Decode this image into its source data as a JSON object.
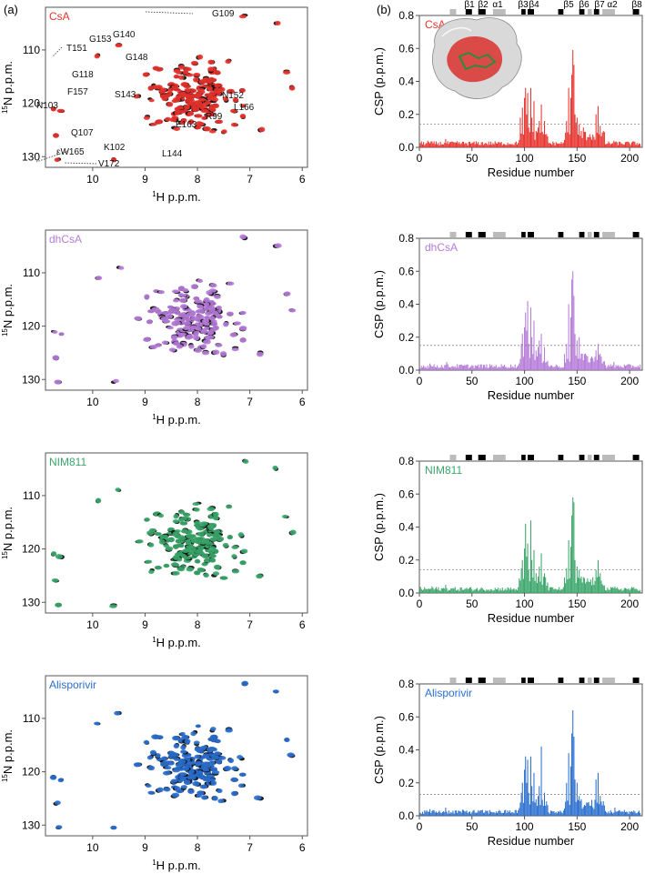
{
  "panel_labels": [
    "(a)",
    "(b)"
  ],
  "hsqc_axes": {
    "xlabel": "1H p.p.m.",
    "xlabel_sup": "1",
    "xlabel_main": "H p.p.m.",
    "ylabel_sup": "15",
    "ylabel_main": "N p.p.m.",
    "xticks": [
      "10",
      "9",
      "8",
      "7",
      "6"
    ],
    "yticks": [
      "110",
      "120",
      "130"
    ]
  },
  "csp_axes": {
    "xlabel": "Residue number",
    "ylabel": "CSP (p.p.m.)",
    "xticks": [
      "0",
      "50",
      "100",
      "150",
      "200"
    ],
    "yticks": [
      "0.0",
      "0.2",
      "0.4",
      "0.6",
      "0.8"
    ]
  },
  "secondary_structure": {
    "labels": [
      "β1",
      "β2",
      "α1",
      "β3",
      "β4",
      "β5",
      "β6",
      "β7",
      "α2",
      "β8"
    ],
    "elements": [
      {
        "type": "grey",
        "start": 29,
        "end": 35
      },
      {
        "type": "black",
        "start": 44,
        "end": 50
      },
      {
        "type": "black",
        "start": 56,
        "end": 63
      },
      {
        "type": "grey",
        "start": 70,
        "end": 82
      },
      {
        "type": "black",
        "start": 97,
        "end": 101
      },
      {
        "type": "black",
        "start": 103,
        "end": 109
      },
      {
        "type": "black",
        "start": 132,
        "end": 137
      },
      {
        "type": "black",
        "start": 152,
        "end": 157
      },
      {
        "type": "grey",
        "start": 160,
        "end": 164
      },
      {
        "type": "black",
        "start": 166,
        "end": 171
      },
      {
        "type": "grey",
        "start": 174,
        "end": 186
      },
      {
        "type": "black",
        "start": 203,
        "end": 209
      }
    ]
  },
  "hsqc_labels": [
    "G109",
    "T151",
    "G153",
    "G140",
    "G148",
    "G118",
    "F157",
    "S143",
    "N152",
    "N103",
    "L166",
    "R99",
    "Q107",
    "E163",
    "K102",
    "εW165",
    "L144",
    "V172"
  ],
  "chart_data": [
    {
      "type": "scatter",
      "name": "CsA HSQC",
      "label": "CsA",
      "color": "#e8322c",
      "xlabel": "1H p.p.m.",
      "ylabel": "15N p.p.m.",
      "xlim": [
        10.9,
        5.9
      ],
      "ylim": [
        102,
        132
      ],
      "xticks": [
        10,
        9,
        8,
        7,
        6
      ],
      "yticks": [
        110,
        120,
        130
      ]
    },
    {
      "type": "bar",
      "name": "CsA CSP",
      "label": "CsA",
      "color": "#e8322c",
      "xlabel": "Residue number",
      "ylabel": "CSP (p.p.m.)",
      "xlim": [
        0,
        212
      ],
      "ylim": [
        0,
        0.8
      ],
      "threshold": 0.14,
      "peaks": [
        [
          96,
          0.18
        ],
        [
          98,
          0.24
        ],
        [
          100,
          0.3
        ],
        [
          101,
          0.36
        ],
        [
          102,
          0.2
        ],
        [
          103,
          0.33
        ],
        [
          104,
          0.12
        ],
        [
          106,
          0.36
        ],
        [
          107,
          0.18
        ],
        [
          109,
          0.28
        ],
        [
          111,
          0.1
        ],
        [
          113,
          0.12
        ],
        [
          114,
          0.16
        ],
        [
          116,
          0.26
        ],
        [
          118,
          0.08
        ],
        [
          119,
          0.16
        ],
        [
          121,
          0.08
        ],
        [
          140,
          0.16
        ],
        [
          142,
          0.36
        ],
        [
          144,
          0.3
        ],
        [
          145,
          0.44
        ],
        [
          146,
          0.59
        ],
        [
          147,
          0.5
        ],
        [
          148,
          0.2
        ],
        [
          149,
          0.15
        ],
        [
          150,
          0.18
        ],
        [
          152,
          0.14
        ],
        [
          154,
          0.1
        ],
        [
          156,
          0.12
        ],
        [
          162,
          0.08
        ],
        [
          168,
          0.2
        ],
        [
          170,
          0.25
        ],
        [
          172,
          0.13
        ],
        [
          174,
          0.09
        ],
        [
          25,
          0.05
        ],
        [
          8,
          0.04
        ],
        [
          33,
          0.03
        ],
        [
          185,
          0.04
        ]
      ]
    },
    {
      "type": "scatter",
      "name": "dhCsA HSQC",
      "label": "dhCsA",
      "color": "#b57bd8",
      "xlabel": "1H p.p.m.",
      "ylabel": "15N p.p.m.",
      "xlim": [
        10.9,
        5.9
      ],
      "ylim": [
        102,
        132
      ],
      "xticks": [
        10,
        9,
        8,
        7,
        6
      ],
      "yticks": [
        110,
        120,
        130
      ]
    },
    {
      "type": "bar",
      "name": "dhCsA CSP",
      "label": "dhCsA",
      "color": "#b57bd8",
      "xlabel": "Residue number",
      "ylabel": "CSP (p.p.m.)",
      "xlim": [
        0,
        212
      ],
      "ylim": [
        0,
        0.8
      ],
      "threshold": 0.15,
      "peaks": [
        [
          97,
          0.16
        ],
        [
          98,
          0.22
        ],
        [
          100,
          0.26
        ],
        [
          101,
          0.35
        ],
        [
          102,
          0.24
        ],
        [
          103,
          0.42
        ],
        [
          104,
          0.16
        ],
        [
          106,
          0.38
        ],
        [
          107,
          0.2
        ],
        [
          109,
          0.3
        ],
        [
          111,
          0.12
        ],
        [
          113,
          0.14
        ],
        [
          114,
          0.18
        ],
        [
          116,
          0.22
        ],
        [
          119,
          0.14
        ],
        [
          140,
          0.16
        ],
        [
          142,
          0.4
        ],
        [
          144,
          0.32
        ],
        [
          145,
          0.55
        ],
        [
          146,
          0.6
        ],
        [
          147,
          0.45
        ],
        [
          148,
          0.22
        ],
        [
          150,
          0.18
        ],
        [
          152,
          0.2
        ],
        [
          154,
          0.1
        ],
        [
          158,
          0.1
        ],
        [
          168,
          0.12
        ],
        [
          170,
          0.16
        ],
        [
          172,
          0.1
        ],
        [
          26,
          0.05
        ],
        [
          10,
          0.04
        ],
        [
          185,
          0.05
        ]
      ]
    },
    {
      "type": "scatter",
      "name": "NIM811 HSQC",
      "label": "NIM811",
      "color": "#3aa66a",
      "xlabel": "1H p.p.m.",
      "ylabel": "15N p.p.m.",
      "xlim": [
        10.9,
        5.9
      ],
      "ylim": [
        102,
        132
      ],
      "xticks": [
        10,
        9,
        8,
        7,
        6
      ],
      "yticks": [
        110,
        120,
        130
      ]
    },
    {
      "type": "bar",
      "name": "NIM811 CSP",
      "label": "NIM811",
      "color": "#3aa66a",
      "xlabel": "Residue number",
      "ylabel": "CSP (p.p.m.)",
      "xlim": [
        0,
        212
      ],
      "ylim": [
        0,
        0.8
      ],
      "threshold": 0.14,
      "peaks": [
        [
          97,
          0.15
        ],
        [
          98,
          0.2
        ],
        [
          100,
          0.27
        ],
        [
          101,
          0.42
        ],
        [
          102,
          0.22
        ],
        [
          103,
          0.3
        ],
        [
          104,
          0.14
        ],
        [
          106,
          0.44
        ],
        [
          107,
          0.2
        ],
        [
          109,
          0.26
        ],
        [
          111,
          0.12
        ],
        [
          113,
          0.1
        ],
        [
          114,
          0.16
        ],
        [
          116,
          0.24
        ],
        [
          119,
          0.12
        ],
        [
          140,
          0.15
        ],
        [
          142,
          0.32
        ],
        [
          144,
          0.28
        ],
        [
          145,
          0.47
        ],
        [
          146,
          0.58
        ],
        [
          147,
          0.55
        ],
        [
          148,
          0.2
        ],
        [
          150,
          0.16
        ],
        [
          152,
          0.14
        ],
        [
          154,
          0.1
        ],
        [
          168,
          0.14
        ],
        [
          170,
          0.2
        ],
        [
          172,
          0.12
        ],
        [
          25,
          0.05
        ],
        [
          12,
          0.04
        ],
        [
          186,
          0.04
        ]
      ]
    },
    {
      "type": "scatter",
      "name": "Alisporivir HSQC",
      "label": "Alisporivir",
      "color": "#2a6fcf",
      "xlabel": "1H p.p.m.",
      "ylabel": "15N p.p.m.",
      "xlim": [
        10.9,
        5.9
      ],
      "ylim": [
        102,
        132
      ],
      "xticks": [
        10,
        9,
        8,
        7,
        6
      ],
      "yticks": [
        110,
        120,
        130
      ]
    },
    {
      "type": "bar",
      "name": "Alisporivir CSP",
      "label": "Alisporivir",
      "color": "#2a6fcf",
      "xlabel": "Residue number",
      "ylabel": "CSP (p.p.m.)",
      "xlim": [
        0,
        212
      ],
      "ylim": [
        0,
        0.8
      ],
      "threshold": 0.13,
      "peaks": [
        [
          97,
          0.14
        ],
        [
          98,
          0.2
        ],
        [
          100,
          0.28
        ],
        [
          101,
          0.36
        ],
        [
          102,
          0.2
        ],
        [
          103,
          0.34
        ],
        [
          104,
          0.14
        ],
        [
          106,
          0.36
        ],
        [
          107,
          0.18
        ],
        [
          109,
          0.26
        ],
        [
          111,
          0.1
        ],
        [
          113,
          0.12
        ],
        [
          114,
          0.18
        ],
        [
          116,
          0.42
        ],
        [
          119,
          0.14
        ],
        [
          140,
          0.2
        ],
        [
          142,
          0.38
        ],
        [
          144,
          0.3
        ],
        [
          145,
          0.5
        ],
        [
          146,
          0.64
        ],
        [
          147,
          0.48
        ],
        [
          148,
          0.22
        ],
        [
          150,
          0.2
        ],
        [
          152,
          0.12
        ],
        [
          154,
          0.1
        ],
        [
          168,
          0.22
        ],
        [
          170,
          0.26
        ],
        [
          172,
          0.12
        ],
        [
          25,
          0.05
        ],
        [
          10,
          0.04
        ],
        [
          186,
          0.05
        ]
      ]
    }
  ]
}
